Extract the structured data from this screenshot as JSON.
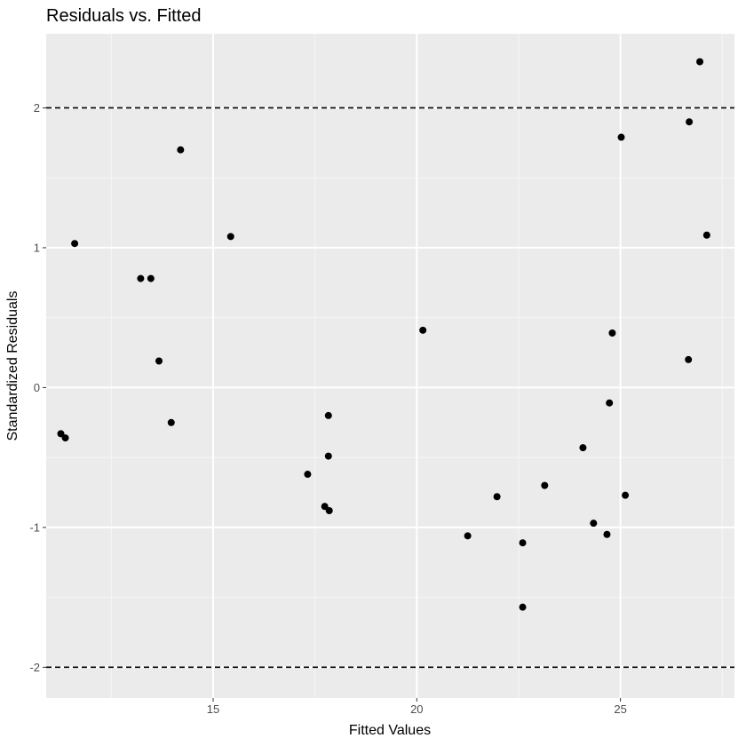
{
  "chart_data": {
    "type": "scatter",
    "title": "Residuals vs. Fitted",
    "xlabel": "Fitted Values",
    "ylabel": "Standardized Residuals",
    "xlim": [
      10.9,
      27.8
    ],
    "ylim": [
      -2.22,
      2.53
    ],
    "x_ticks": [
      15,
      20,
      25
    ],
    "x_tick_labels": [
      "15",
      "20",
      "25"
    ],
    "x_minor_ticks": [
      12.5,
      17.5,
      22.5,
      27.5
    ],
    "y_ticks": [
      -2,
      -1,
      0,
      1,
      2
    ],
    "y_tick_labels": [
      "-2",
      "-1",
      "0",
      "1",
      "2"
    ],
    "y_minor_ticks": [
      -1.5,
      -0.5,
      0.5,
      1.5
    ],
    "reference_lines": [
      -2,
      2
    ],
    "grid": true,
    "colors": {
      "panel_background": "#ebebeb",
      "grid_major": "#ffffff",
      "grid_minor": "#f5f5f5",
      "point": "#000000",
      "reference_line": "#000000",
      "text": "#000000",
      "tick_text": "#4d4d4d",
      "tick_mark": "#333333"
    },
    "points": [
      {
        "x": 11.26,
        "y": -0.33
      },
      {
        "x": 11.37,
        "y": -0.36
      },
      {
        "x": 11.6,
        "y": 1.03
      },
      {
        "x": 13.22,
        "y": 0.78
      },
      {
        "x": 13.47,
        "y": 0.78
      },
      {
        "x": 13.67,
        "y": 0.19
      },
      {
        "x": 13.97,
        "y": -0.25
      },
      {
        "x": 14.2,
        "y": 1.7
      },
      {
        "x": 15.43,
        "y": 1.08
      },
      {
        "x": 17.32,
        "y": -0.62
      },
      {
        "x": 17.74,
        "y": -0.85
      },
      {
        "x": 17.83,
        "y": -0.2
      },
      {
        "x": 17.83,
        "y": -0.49
      },
      {
        "x": 17.85,
        "y": -0.88
      },
      {
        "x": 20.15,
        "y": 0.41
      },
      {
        "x": 21.25,
        "y": -1.06
      },
      {
        "x": 21.97,
        "y": -0.78
      },
      {
        "x": 22.6,
        "y": -1.11
      },
      {
        "x": 22.6,
        "y": -1.57
      },
      {
        "x": 23.14,
        "y": -0.7
      },
      {
        "x": 24.08,
        "y": -0.43
      },
      {
        "x": 24.34,
        "y": -0.97
      },
      {
        "x": 24.67,
        "y": -1.05
      },
      {
        "x": 24.73,
        "y": -0.11
      },
      {
        "x": 24.8,
        "y": 0.39
      },
      {
        "x": 25.02,
        "y": 1.79
      },
      {
        "x": 25.12,
        "y": -0.77
      },
      {
        "x": 26.67,
        "y": 0.2
      },
      {
        "x": 26.69,
        "y": 1.9
      },
      {
        "x": 26.95,
        "y": 2.33
      },
      {
        "x": 27.12,
        "y": 1.09
      }
    ]
  }
}
